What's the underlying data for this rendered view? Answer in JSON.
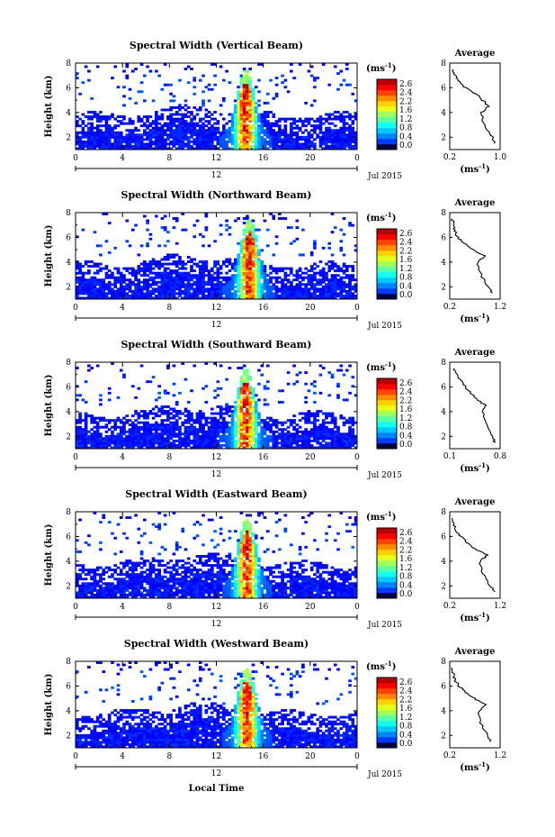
{
  "figure": {
    "date_label": "Jul 2015",
    "colorbar_unit": "(ms",
    "colorbar_unit_sup": "-1",
    "colorbar_unit_close": ")",
    "xlabel_bottom": "Local Time",
    "ylabel": "Height (km)",
    "avg_title": "Average",
    "avg_xlabel": "(ms",
    "avg_xlabel_sup": "-1",
    "avg_xlabel_close": ")"
  },
  "chart_data": [
    {
      "type": "heatmap",
      "title": "Spectral Width (Vertical Beam)",
      "xlabel": "",
      "ylabel": "Height (km)",
      "xlim": [
        0,
        24
      ],
      "ylim": [
        1,
        8
      ],
      "x_ticks": [
        "0",
        "4",
        "8",
        "12",
        "16",
        "20",
        "0"
      ],
      "x_sub_label": "12",
      "y_ticks": [
        "2",
        "4",
        "6",
        "8"
      ],
      "colorbar": {
        "range": [
          0.0,
          2.6
        ],
        "ticks": [
          "2.6",
          "2.4",
          "2.2",
          "1.6",
          "1.2",
          "0.8",
          "0.4",
          "0.0"
        ]
      },
      "peak_time_hours": 14.5,
      "average_profile": {
        "xlim": [
          0.2,
          1.0
        ],
        "x_ticks": [
          "0.2",
          "1.0"
        ],
        "height_km": [
          1.5,
          2.0,
          3.0,
          4.0,
          4.5,
          5.0,
          5.5,
          6.0,
          6.5,
          7.0,
          7.5
        ],
        "width_ms": [
          0.92,
          0.88,
          0.75,
          0.7,
          0.82,
          0.72,
          0.62,
          0.45,
          0.35,
          0.28,
          0.25
        ]
      }
    },
    {
      "type": "heatmap",
      "title": "Spectral Width (Northward Beam)",
      "xlabel": "",
      "ylabel": "Height (km)",
      "xlim": [
        0,
        24
      ],
      "ylim": [
        1,
        8
      ],
      "x_ticks": [
        "0",
        "4",
        "8",
        "12",
        "16",
        "20",
        "0"
      ],
      "x_sub_label": "12",
      "y_ticks": [
        "2",
        "4",
        "6",
        "8"
      ],
      "colorbar": {
        "range": [
          0.0,
          2.6
        ],
        "ticks": [
          "2.6",
          "2.4",
          "2.2",
          "1.6",
          "1.2",
          "0.8",
          "0.4",
          "0.0"
        ]
      },
      "peak_time_hours": 14.8,
      "average_profile": {
        "xlim": [
          0.2,
          1.2
        ],
        "x_ticks": [
          "0.2",
          "1.2"
        ],
        "height_km": [
          1.5,
          2.0,
          3.0,
          4.0,
          4.5,
          5.0,
          5.5,
          6.0,
          6.5,
          7.0,
          7.5
        ],
        "width_ms": [
          1.05,
          0.95,
          0.82,
          0.75,
          0.9,
          0.65,
          0.5,
          0.35,
          0.3,
          0.28,
          0.25
        ]
      }
    },
    {
      "type": "heatmap",
      "title": "Spectral Width (Southward Beam)",
      "xlabel": "",
      "ylabel": "Height (km)",
      "xlim": [
        0,
        24
      ],
      "ylim": [
        1,
        8
      ],
      "x_ticks": [
        "0",
        "4",
        "8",
        "12",
        "16",
        "20",
        "0"
      ],
      "x_sub_label": "12",
      "y_ticks": [
        "2",
        "4",
        "6",
        "8"
      ],
      "colorbar": {
        "range": [
          0.0,
          2.6
        ],
        "ticks": [
          "2.6",
          "2.4",
          "2.2",
          "1.6",
          "1.2",
          "0.8",
          "0.4",
          "0.0"
        ]
      },
      "peak_time_hours": 14.5,
      "average_profile": {
        "xlim": [
          0.1,
          0.8
        ],
        "x_ticks": [
          "0.1",
          "0.8"
        ],
        "height_km": [
          1.5,
          2.0,
          3.0,
          4.0,
          4.5,
          5.0,
          5.5,
          6.0,
          6.5,
          7.0,
          7.5
        ],
        "width_ms": [
          0.72,
          0.7,
          0.62,
          0.55,
          0.6,
          0.48,
          0.4,
          0.32,
          0.25,
          0.2,
          0.16
        ]
      }
    },
    {
      "type": "heatmap",
      "title": "Spectral Width (Eastward Beam)",
      "xlabel": "",
      "ylabel": "Height (km)",
      "xlim": [
        0,
        24
      ],
      "ylim": [
        1,
        8
      ],
      "x_ticks": [
        "0",
        "4",
        "8",
        "12",
        "16",
        "20",
        "0"
      ],
      "x_sub_label": "12",
      "y_ticks": [
        "2",
        "4",
        "6",
        "8"
      ],
      "colorbar": {
        "range": [
          0.0,
          2.6
        ],
        "ticks": [
          "2.6",
          "2.4",
          "2.2",
          "1.6",
          "1.2",
          "0.8",
          "0.4",
          "0.0"
        ]
      },
      "peak_time_hours": 14.6,
      "average_profile": {
        "xlim": [
          0.2,
          1.2
        ],
        "x_ticks": [
          "0.2",
          "1.2"
        ],
        "height_km": [
          1.5,
          2.0,
          3.0,
          4.0,
          4.5,
          5.0,
          5.5,
          6.0,
          6.5,
          7.0,
          7.5
        ],
        "width_ms": [
          1.1,
          1.0,
          0.85,
          0.8,
          0.95,
          0.7,
          0.55,
          0.42,
          0.32,
          0.28,
          0.25
        ]
      }
    },
    {
      "type": "heatmap",
      "title": "Spectral Width (Westward Beam)",
      "xlabel": "Local Time",
      "ylabel": "Height (km)",
      "xlim": [
        0,
        24
      ],
      "ylim": [
        1,
        8
      ],
      "x_ticks": [
        "0",
        "4",
        "8",
        "12",
        "16",
        "20",
        "0"
      ],
      "x_sub_label": "12",
      "y_ticks": [
        "2",
        "4",
        "6",
        "8"
      ],
      "colorbar": {
        "range": [
          0.0,
          2.6
        ],
        "ticks": [
          "2.6",
          "2.4",
          "2.2",
          "1.6",
          "1.2",
          "0.8",
          "0.4",
          "0.0"
        ]
      },
      "peak_time_hours": 14.6,
      "average_profile": {
        "xlim": [
          0.2,
          1.2
        ],
        "x_ticks": [
          "0.2",
          "1.2"
        ],
        "height_km": [
          1.5,
          2.0,
          3.0,
          4.0,
          4.5,
          5.0,
          5.5,
          6.0,
          6.5,
          7.0,
          7.5
        ],
        "width_ms": [
          1.0,
          0.95,
          0.82,
          0.78,
          0.92,
          0.68,
          0.52,
          0.38,
          0.3,
          0.27,
          0.24
        ]
      }
    }
  ]
}
